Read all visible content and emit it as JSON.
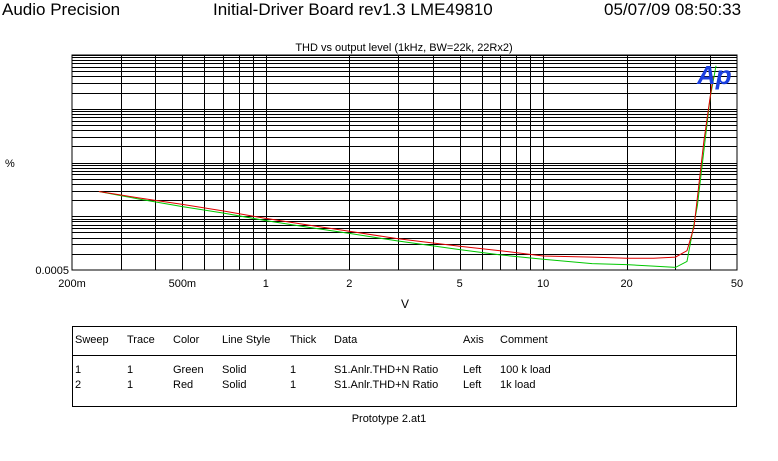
{
  "header": {
    "left": "Audio Precision",
    "center": "Initial-Driver Board rev1.3 LME49810",
    "right": "05/07/09 08:50:33"
  },
  "colors": {
    "green": "#00c800",
    "red": "#e00000",
    "ap_logo": "#1a3fe0",
    "grid": "#000000"
  },
  "chart_data": {
    "type": "line",
    "title": "THD vs output level (1kHz, BW=22k, 22Rx2)",
    "xlabel": "V",
    "ylabel": "%",
    "x_scale": "log",
    "xlim": [
      0.2,
      50
    ],
    "x_ticks": [
      0.2,
      0.5,
      1,
      2,
      5,
      10,
      20,
      50
    ],
    "x_tick_labels": [
      "200m",
      "500m",
      "1",
      "2",
      "5",
      "10",
      "20",
      "50"
    ],
    "y_scale": "log",
    "y_tick_label": "0.0005",
    "grid": true,
    "series": [
      {
        "name": "100 k load",
        "color": "green",
        "x": [
          0.25,
          0.35,
          0.5,
          0.7,
          1.0,
          1.4,
          2.0,
          3.0,
          5.0,
          7.0,
          10.0,
          15.0,
          20.0,
          25.0,
          30.0,
          33.0,
          36.0,
          40.0,
          42.0
        ],
        "y_frac": [
          0.365,
          0.33,
          0.295,
          0.265,
          0.23,
          0.2,
          0.17,
          0.135,
          0.095,
          0.07,
          0.05,
          0.03,
          0.025,
          0.018,
          0.012,
          0.04,
          0.3,
          0.8,
          0.95
        ]
      },
      {
        "name": "1k load",
        "color": "red",
        "x": [
          0.25,
          0.35,
          0.5,
          0.7,
          1.0,
          1.4,
          2.0,
          3.0,
          5.0,
          7.0,
          10.0,
          15.0,
          20.0,
          25.0,
          30.0,
          33.0,
          35.0,
          38.0,
          41.0
        ],
        "y_frac": [
          0.365,
          0.335,
          0.305,
          0.275,
          0.24,
          0.21,
          0.18,
          0.145,
          0.11,
          0.09,
          0.065,
          0.06,
          0.055,
          0.055,
          0.06,
          0.09,
          0.2,
          0.6,
          0.9
        ]
      }
    ]
  },
  "logo": {
    "text": "Ap"
  },
  "legend": {
    "headers": [
      "Sweep",
      "Trace",
      "Color",
      "Line Style",
      "Thick",
      "Data",
      "Axis",
      "Comment"
    ],
    "rows": [
      [
        "1",
        "1",
        "Green",
        "Solid",
        "1",
        "S1.Anlr.THD+N Ratio",
        "Left",
        "100 k load"
      ],
      [
        "2",
        "1",
        "Red",
        "Solid",
        "1",
        "S1.Anlr.THD+N Ratio",
        "Left",
        "1k load"
      ]
    ]
  },
  "footer": "Prototype 2.at1"
}
